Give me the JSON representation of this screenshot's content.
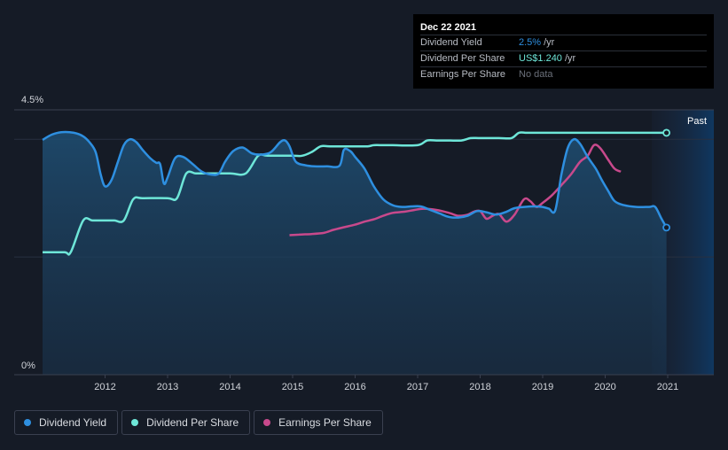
{
  "tooltip": {
    "date": "Dec 22 2021",
    "rows": [
      {
        "label": "Dividend Yield",
        "value": "2.5%",
        "unit": "/yr",
        "color": "#2e8fe0"
      },
      {
        "label": "Dividend Per Share",
        "value": "US$1.240",
        "unit": "/yr",
        "color": "#6ee6d8"
      },
      {
        "label": "Earnings Per Share",
        "value": "No data",
        "unit": "",
        "color": "#6b707a"
      }
    ]
  },
  "past_label": "Past",
  "legend": [
    {
      "label": "Dividend Yield",
      "color": "#2e8fe0"
    },
    {
      "label": "Dividend Per Share",
      "color": "#6ee6d8"
    },
    {
      "label": "Earnings Per Share",
      "color": "#c8498c"
    }
  ],
  "chart_data": {
    "type": "line",
    "y_ticks": [
      "4.5%",
      "0%"
    ],
    "ylim": [
      0,
      4.5
    ],
    "x_ticks": [
      "2012",
      "2013",
      "2014",
      "2015",
      "2016",
      "2017",
      "2018",
      "2019",
      "2020",
      "2021"
    ],
    "xlim": [
      2011.0,
      2022.0
    ],
    "series": [
      {
        "name": "Dividend Yield",
        "color": "#2e8fe0",
        "area": true,
        "points": [
          [
            2011.0,
            3.99
          ],
          [
            2011.15,
            4.08
          ],
          [
            2011.3,
            4.12
          ],
          [
            2011.5,
            4.11
          ],
          [
            2011.65,
            4.05
          ],
          [
            2011.75,
            3.95
          ],
          [
            2011.85,
            3.78
          ],
          [
            2011.93,
            3.4
          ],
          [
            2012.0,
            3.2
          ],
          [
            2012.1,
            3.3
          ],
          [
            2012.2,
            3.6
          ],
          [
            2012.3,
            3.9
          ],
          [
            2012.4,
            4.0
          ],
          [
            2012.5,
            3.95
          ],
          [
            2012.6,
            3.82
          ],
          [
            2012.72,
            3.68
          ],
          [
            2012.82,
            3.6
          ],
          [
            2012.88,
            3.58
          ],
          [
            2012.94,
            3.25
          ],
          [
            2013.0,
            3.35
          ],
          [
            2013.12,
            3.68
          ],
          [
            2013.25,
            3.7
          ],
          [
            2013.4,
            3.58
          ],
          [
            2013.55,
            3.45
          ],
          [
            2013.7,
            3.4
          ],
          [
            2013.82,
            3.42
          ],
          [
            2013.92,
            3.62
          ],
          [
            2014.05,
            3.8
          ],
          [
            2014.2,
            3.86
          ],
          [
            2014.35,
            3.76
          ],
          [
            2014.5,
            3.74
          ],
          [
            2014.65,
            3.78
          ],
          [
            2014.8,
            3.95
          ],
          [
            2014.88,
            3.98
          ],
          [
            2014.95,
            3.88
          ],
          [
            2015.05,
            3.62
          ],
          [
            2015.2,
            3.56
          ],
          [
            2015.35,
            3.54
          ],
          [
            2015.55,
            3.54
          ],
          [
            2015.75,
            3.55
          ],
          [
            2015.82,
            3.82
          ],
          [
            2015.92,
            3.8
          ],
          [
            2016.0,
            3.7
          ],
          [
            2016.15,
            3.5
          ],
          [
            2016.3,
            3.2
          ],
          [
            2016.45,
            2.98
          ],
          [
            2016.6,
            2.88
          ],
          [
            2016.75,
            2.85
          ],
          [
            2016.9,
            2.86
          ],
          [
            2017.05,
            2.86
          ],
          [
            2017.2,
            2.8
          ],
          [
            2017.35,
            2.74
          ],
          [
            2017.5,
            2.68
          ],
          [
            2017.65,
            2.67
          ],
          [
            2017.8,
            2.7
          ],
          [
            2017.95,
            2.78
          ],
          [
            2018.1,
            2.76
          ],
          [
            2018.25,
            2.72
          ],
          [
            2018.4,
            2.76
          ],
          [
            2018.55,
            2.83
          ],
          [
            2018.7,
            2.85
          ],
          [
            2018.85,
            2.86
          ],
          [
            2019.0,
            2.85
          ],
          [
            2019.1,
            2.82
          ],
          [
            2019.2,
            2.79
          ],
          [
            2019.3,
            3.4
          ],
          [
            2019.4,
            3.85
          ],
          [
            2019.5,
            4.0
          ],
          [
            2019.6,
            3.92
          ],
          [
            2019.72,
            3.7
          ],
          [
            2019.85,
            3.5
          ],
          [
            2019.95,
            3.3
          ],
          [
            2020.05,
            3.12
          ],
          [
            2020.15,
            2.95
          ],
          [
            2020.3,
            2.88
          ],
          [
            2020.5,
            2.85
          ],
          [
            2020.7,
            2.85
          ],
          [
            2020.8,
            2.85
          ],
          [
            2020.9,
            2.65
          ],
          [
            2020.98,
            2.5
          ]
        ]
      },
      {
        "name": "Dividend Per Share",
        "color": "#6ee6d8",
        "area": false,
        "points": [
          [
            2011.0,
            2.08
          ],
          [
            2011.35,
            2.08
          ],
          [
            2011.45,
            2.08
          ],
          [
            2011.65,
            2.62
          ],
          [
            2011.8,
            2.62
          ],
          [
            2012.0,
            2.62
          ],
          [
            2012.15,
            2.62
          ],
          [
            2012.3,
            2.62
          ],
          [
            2012.45,
            2.98
          ],
          [
            2012.6,
            3.0
          ],
          [
            2013.0,
            3.0
          ],
          [
            2013.15,
            3.0
          ],
          [
            2013.3,
            3.42
          ],
          [
            2013.45,
            3.42
          ],
          [
            2013.6,
            3.42
          ],
          [
            2014.0,
            3.42
          ],
          [
            2014.25,
            3.42
          ],
          [
            2014.45,
            3.72
          ],
          [
            2014.6,
            3.72
          ],
          [
            2015.0,
            3.72
          ],
          [
            2015.15,
            3.72
          ],
          [
            2015.3,
            3.78
          ],
          [
            2015.45,
            3.88
          ],
          [
            2015.6,
            3.88
          ],
          [
            2016.0,
            3.88
          ],
          [
            2016.2,
            3.88
          ],
          [
            2016.3,
            3.9
          ],
          [
            2016.45,
            3.9
          ],
          [
            2016.6,
            3.9
          ],
          [
            2017.0,
            3.9
          ],
          [
            2017.15,
            3.98
          ],
          [
            2017.3,
            3.98
          ],
          [
            2017.5,
            3.98
          ],
          [
            2017.7,
            3.98
          ],
          [
            2017.85,
            4.02
          ],
          [
            2018.0,
            4.02
          ],
          [
            2018.3,
            4.02
          ],
          [
            2018.5,
            4.02
          ],
          [
            2018.62,
            4.11
          ],
          [
            2018.75,
            4.11
          ],
          [
            2019.0,
            4.11
          ],
          [
            2019.3,
            4.11
          ],
          [
            2019.6,
            4.11
          ],
          [
            2020.0,
            4.11
          ],
          [
            2020.3,
            4.11
          ],
          [
            2020.6,
            4.11
          ],
          [
            2020.98,
            4.11
          ]
        ]
      },
      {
        "name": "Earnings Per Share",
        "color": "#c8498c",
        "area": false,
        "points": [
          [
            2014.95,
            2.37
          ],
          [
            2015.1,
            2.38
          ],
          [
            2015.3,
            2.39
          ],
          [
            2015.5,
            2.41
          ],
          [
            2015.65,
            2.46
          ],
          [
            2015.8,
            2.5
          ],
          [
            2016.0,
            2.55
          ],
          [
            2016.15,
            2.6
          ],
          [
            2016.3,
            2.64
          ],
          [
            2016.45,
            2.7
          ],
          [
            2016.6,
            2.75
          ],
          [
            2016.8,
            2.77
          ],
          [
            2016.95,
            2.8
          ],
          [
            2017.1,
            2.82
          ],
          [
            2017.3,
            2.8
          ],
          [
            2017.5,
            2.75
          ],
          [
            2017.65,
            2.7
          ],
          [
            2017.8,
            2.72
          ],
          [
            2017.9,
            2.77
          ],
          [
            2018.0,
            2.78
          ],
          [
            2018.1,
            2.65
          ],
          [
            2018.2,
            2.7
          ],
          [
            2018.3,
            2.73
          ],
          [
            2018.42,
            2.6
          ],
          [
            2018.55,
            2.72
          ],
          [
            2018.7,
            2.98
          ],
          [
            2018.8,
            2.95
          ],
          [
            2018.9,
            2.85
          ],
          [
            2019.0,
            2.92
          ],
          [
            2019.15,
            3.05
          ],
          [
            2019.3,
            3.22
          ],
          [
            2019.45,
            3.4
          ],
          [
            2019.6,
            3.62
          ],
          [
            2019.72,
            3.72
          ],
          [
            2019.82,
            3.9
          ],
          [
            2019.92,
            3.85
          ],
          [
            2020.05,
            3.65
          ],
          [
            2020.15,
            3.5
          ],
          [
            2020.25,
            3.45
          ]
        ]
      }
    ],
    "tooltip_date": "Dec 22 2021"
  }
}
